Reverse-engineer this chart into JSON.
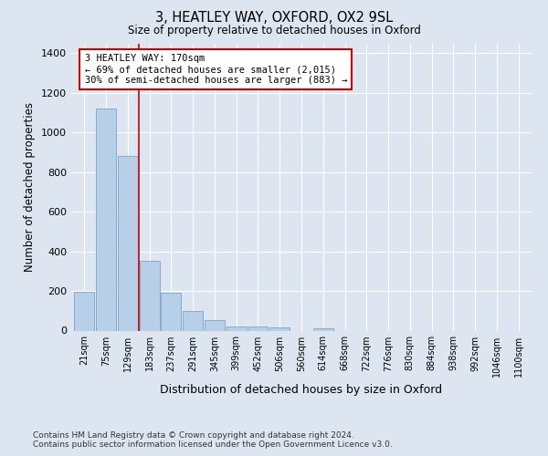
{
  "title": "3, HEATLEY WAY, OXFORD, OX2 9SL",
  "subtitle": "Size of property relative to detached houses in Oxford",
  "xlabel": "Distribution of detached houses by size in Oxford",
  "ylabel": "Number of detached properties",
  "categories": [
    "21sqm",
    "75sqm",
    "129sqm",
    "183sqm",
    "237sqm",
    "291sqm",
    "345sqm",
    "399sqm",
    "452sqm",
    "506sqm",
    "560sqm",
    "614sqm",
    "668sqm",
    "722sqm",
    "776sqm",
    "830sqm",
    "884sqm",
    "938sqm",
    "992sqm",
    "1046sqm",
    "1100sqm"
  ],
  "values": [
    195,
    1120,
    880,
    350,
    192,
    100,
    52,
    22,
    20,
    18,
    0,
    12,
    0,
    0,
    0,
    0,
    0,
    0,
    0,
    0,
    0
  ],
  "bar_color": "#b8cfe8",
  "bar_edge_color": "#6699cc",
  "vline_color": "#cc0000",
  "annotation_text": "3 HEATLEY WAY: 170sqm\n← 69% of detached houses are smaller (2,015)\n30% of semi-detached houses are larger (883) →",
  "annotation_box_color": "#ffffff",
  "annotation_box_edge": "#cc0000",
  "ylim": [
    0,
    1450
  ],
  "yticks": [
    0,
    200,
    400,
    600,
    800,
    1000,
    1200,
    1400
  ],
  "background_color": "#dde6f0",
  "grid_color": "#ffffff",
  "footnote": "Contains HM Land Registry data © Crown copyright and database right 2024.\nContains public sector information licensed under the Open Government Licence v3.0."
}
